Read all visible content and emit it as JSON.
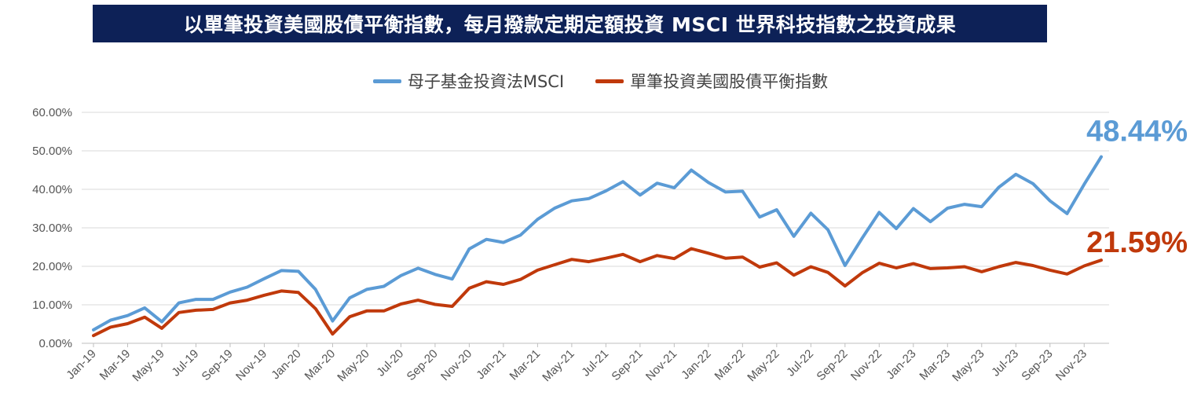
{
  "title": "以單筆投資美國股債平衡指數，每月撥款定期定額投資 MSCI 世界科技指數之投資成果",
  "colors": {
    "title_bg": "#0d2157",
    "series1": "#5b9bd5",
    "series2": "#c0390b"
  },
  "chart_data": {
    "type": "line",
    "ylim": [
      0,
      60
    ],
    "y_ticks": [
      "0.00%",
      "10.00%",
      "20.00%",
      "30.00%",
      "40.00%",
      "50.00%",
      "60.00%"
    ],
    "x_tick_labels": [
      "Jan-19",
      "Mar-19",
      "May-19",
      "Jul-19",
      "Sep-19",
      "Nov-19",
      "Jan-20",
      "Mar-20",
      "May-20",
      "Jul-20",
      "Sep-20",
      "Nov-20",
      "Jan-21",
      "Mar-21",
      "May-21",
      "Jul-21",
      "Sep-21",
      "Nov-21",
      "Jan-22",
      "Mar-22",
      "May-22",
      "Jul-22",
      "Sep-22",
      "Nov-22",
      "Jan-23",
      "Mar-23",
      "May-23",
      "Jul-23",
      "Sep-23",
      "Nov-23"
    ],
    "grid": true,
    "legend_position": "top",
    "series": [
      {
        "name": "母子基金投資法MSCI",
        "values": [
          3.5,
          6,
          7.2,
          9.2,
          5.6,
          10.5,
          11.4,
          11.4,
          13.3,
          14.6,
          16.8,
          18.9,
          18.7,
          14,
          5.8,
          11.8,
          14,
          14.8,
          17.6,
          19.5,
          17.9,
          16.7,
          24.5,
          27,
          26.2,
          28.1,
          32.2,
          35.1,
          37,
          37.6,
          39.6,
          42,
          38.5,
          41.6,
          40.4,
          45,
          41.8,
          39.3,
          39.5,
          32.8,
          34.7,
          27.8,
          33.8,
          29.5,
          20.2,
          27.3,
          34,
          29.8,
          35,
          31.6,
          35.1,
          36.1,
          35.5,
          40.5,
          43.9,
          41.5,
          37,
          33.7,
          41.3,
          48.44
        ],
        "end_label": "48.44%"
      },
      {
        "name": "單筆投資美國股債平衡指數",
        "values": [
          2,
          4.2,
          5.1,
          6.8,
          3.9,
          8,
          8.6,
          8.8,
          10.5,
          11.2,
          12.5,
          13.6,
          13.2,
          9,
          2.4,
          6.9,
          8.4,
          8.4,
          10.2,
          11.2,
          10.1,
          9.6,
          14.3,
          16,
          15.3,
          16.6,
          19,
          20.4,
          21.8,
          21.2,
          22.1,
          23.1,
          21.2,
          22.8,
          22,
          24.6,
          23.4,
          22.1,
          22.4,
          19.8,
          20.9,
          17.7,
          19.9,
          18.4,
          14.9,
          18.3,
          20.8,
          19.6,
          20.7,
          19.4,
          19.6,
          19.9,
          18.6,
          19.9,
          21,
          20.2,
          19,
          18,
          20.1,
          21.59
        ],
        "end_label": "21.59%"
      }
    ]
  }
}
